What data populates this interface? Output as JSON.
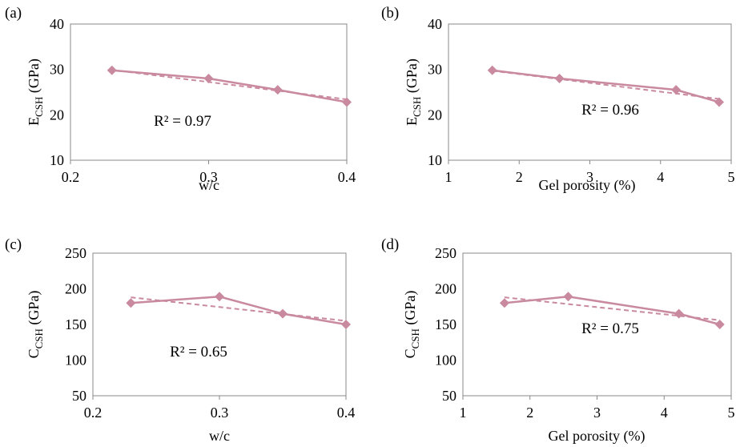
{
  "chart_data": [
    {
      "panel": "(a)",
      "type": "line",
      "ylabel_main": "E",
      "ylabel_sub": "CSH",
      "ylabel_unit": " (GPa)",
      "xlabel": "w/c",
      "xlim": [
        0.2,
        0.4
      ],
      "ylim": [
        10,
        40
      ],
      "xticks": [
        0.2,
        0.3,
        0.4
      ],
      "xtick_labels": [
        "0.2",
        "0.3",
        "0.4"
      ],
      "yticks": [
        10,
        20,
        30,
        40
      ],
      "ytick_labels": [
        "10",
        "20",
        "30",
        "40"
      ],
      "grid": false,
      "series": [
        {
          "x": [
            0.23,
            0.3,
            0.35,
            0.4
          ],
          "y": [
            29.8,
            28.0,
            25.5,
            22.8
          ]
        }
      ],
      "trendline": {
        "x": [
          0.23,
          0.4
        ],
        "y": [
          29.9,
          23.4
        ]
      },
      "annotation": "R² = 0.97",
      "marker_color": "#c9899f"
    },
    {
      "panel": "(b)",
      "type": "line",
      "ylabel_main": "E",
      "ylabel_sub": "CSH",
      "ylabel_unit": " (GPa)",
      "xlabel": "Gel porosity (%)",
      "xlim": [
        1,
        5
      ],
      "ylim": [
        10,
        40
      ],
      "xticks": [
        1,
        2,
        3,
        4,
        5
      ],
      "xtick_labels": [
        "1",
        "2",
        "3",
        "4",
        "5"
      ],
      "yticks": [
        10,
        20,
        30,
        40
      ],
      "ytick_labels": [
        "10",
        "20",
        "30",
        "40"
      ],
      "grid": false,
      "series": [
        {
          "x": [
            1.62,
            2.57,
            4.22,
            4.83
          ],
          "y": [
            29.8,
            28.0,
            25.5,
            22.8
          ]
        }
      ],
      "trendline": {
        "x": [
          1.62,
          4.83
        ],
        "y": [
          29.7,
          23.5
        ]
      },
      "annotation": "R² = 0.96",
      "marker_color": "#c9899f"
    },
    {
      "panel": "(c)",
      "type": "line",
      "ylabel_main": "C",
      "ylabel_sub": "CSH",
      "ylabel_unit": " (GPa)",
      "xlabel": "w/c",
      "xlim": [
        0.2,
        0.4
      ],
      "ylim": [
        50,
        250
      ],
      "xticks": [
        0.2,
        0.3,
        0.4
      ],
      "xtick_labels": [
        "0.2",
        "0.3",
        "0.4"
      ],
      "yticks": [
        50,
        100,
        150,
        200,
        250
      ],
      "ytick_labels": [
        "50",
        "100",
        "150",
        "200",
        "250"
      ],
      "grid": false,
      "series": [
        {
          "x": [
            0.23,
            0.3,
            0.35,
            0.4
          ],
          "y": [
            180,
            189,
            165,
            150
          ]
        }
      ],
      "trendline": {
        "x": [
          0.23,
          0.4
        ],
        "y": [
          188,
          155
        ]
      },
      "annotation": "R² = 0.65",
      "marker_color": "#c9899f"
    },
    {
      "panel": "(d)",
      "type": "line",
      "ylabel_main": "C",
      "ylabel_sub": "CSH",
      "ylabel_unit": " (GPa)",
      "xlabel": "Gel porosity (%)",
      "xlim": [
        1,
        5
      ],
      "ylim": [
        50,
        250
      ],
      "xticks": [
        1,
        2,
        3,
        4,
        5
      ],
      "xtick_labels": [
        "1",
        "2",
        "3",
        "4",
        "5"
      ],
      "yticks": [
        50,
        100,
        150,
        200,
        250
      ],
      "ytick_labels": [
        "50",
        "100",
        "150",
        "200",
        "250"
      ],
      "grid": false,
      "series": [
        {
          "x": [
            1.62,
            2.57,
            4.22,
            4.83
          ],
          "y": [
            180,
            189,
            165,
            150
          ]
        }
      ],
      "trendline": {
        "x": [
          1.62,
          4.83
        ],
        "y": [
          188,
          156
        ]
      },
      "annotation": "R² = 0.75",
      "marker_color": "#c9899f"
    }
  ]
}
